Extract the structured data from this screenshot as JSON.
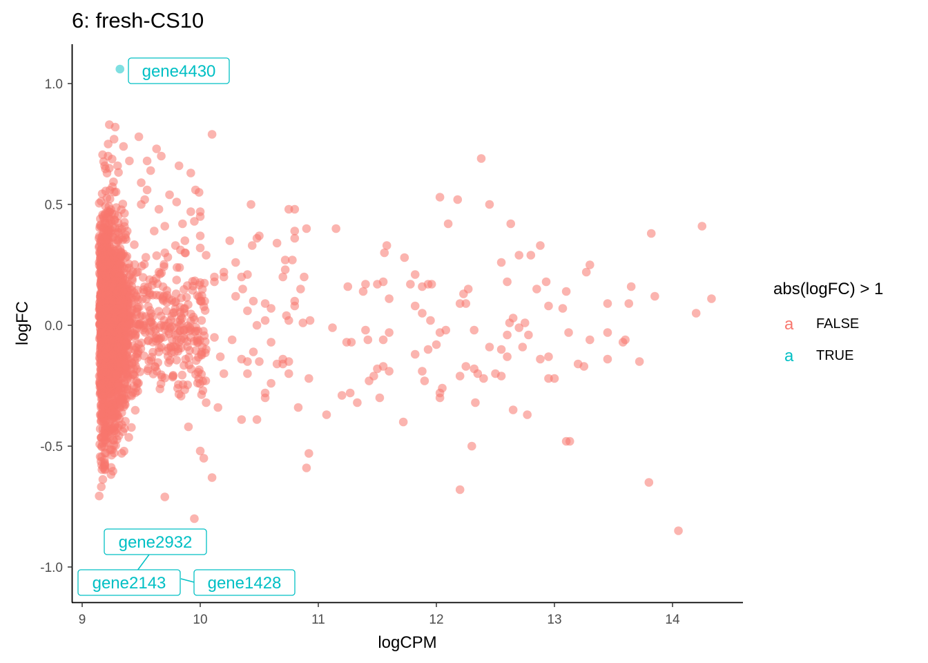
{
  "chart_data": {
    "type": "scatter",
    "title": "6: fresh-CS10",
    "xlabel": "logCPM",
    "ylabel": "logFC",
    "xlim": [
      8.92,
      14.6
    ],
    "ylim": [
      -1.15,
      1.16
    ],
    "x_ticks": [
      9,
      10,
      11,
      12,
      13,
      14
    ],
    "y_ticks": [
      -1.0,
      -0.5,
      0.0,
      0.5,
      1.0
    ],
    "x_tick_labels": [
      "9",
      "10",
      "11",
      "12",
      "13",
      "14"
    ],
    "y_tick_labels": [
      "-1.0",
      "-0.5",
      "0.0",
      "0.5",
      "1.0"
    ],
    "grid": false,
    "legend": {
      "title": "abs(logFC) > 1",
      "position": "right",
      "entries": [
        {
          "label": "FALSE",
          "key_glyph": "a",
          "color": "#F8766D"
        },
        {
          "label": "TRUE",
          "key_glyph": "a",
          "color": "#00BFC4"
        }
      ]
    },
    "colors": {
      "FALSE": "#F8766D",
      "TRUE": "#00BFC4"
    },
    "annotations": [
      {
        "gene": "gene4430",
        "x": 9.32,
        "y": 1.06
      },
      {
        "gene": "gene2932",
        "x": 9.42,
        "y": -0.9
      },
      {
        "gene": "gene2143",
        "x": 9.38,
        "y": -1.07
      },
      {
        "gene": "gene1428",
        "x": 9.9,
        "y": -1.07
      }
    ],
    "series": [
      {
        "name": "TRUE",
        "points": [
          [
            9.32,
            1.06
          ]
        ]
      },
      {
        "name": "FALSE",
        "points": [
          [
            9.23,
            0.83
          ],
          [
            9.28,
            0.82
          ],
          [
            9.22,
            0.75
          ],
          [
            9.27,
            0.77
          ],
          [
            9.35,
            0.74
          ],
          [
            9.48,
            0.78
          ],
          [
            9.63,
            0.73
          ],
          [
            9.67,
            0.7
          ],
          [
            9.55,
            0.68
          ],
          [
            9.22,
            0.7
          ],
          [
            9.23,
            0.65
          ],
          [
            9.3,
            0.66
          ],
          [
            9.4,
            0.68
          ],
          [
            9.82,
            0.66
          ],
          [
            9.92,
            0.63
          ],
          [
            10.1,
            0.79
          ],
          [
            9.58,
            0.64
          ],
          [
            9.5,
            0.59
          ],
          [
            9.55,
            0.56
          ],
          [
            9.74,
            0.54
          ],
          [
            9.8,
            0.51
          ],
          [
            9.96,
            0.56
          ],
          [
            9.99,
            0.55
          ],
          [
            9.53,
            0.52
          ],
          [
            9.5,
            0.5
          ],
          [
            9.65,
            0.48
          ],
          [
            10.0,
            0.47
          ],
          [
            10.0,
            0.45
          ],
          [
            9.92,
            0.47
          ],
          [
            9.85,
            0.42
          ],
          [
            9.7,
            0.41
          ],
          [
            9.95,
            0.43
          ],
          [
            10.0,
            0.37
          ],
          [
            9.61,
            0.39
          ],
          [
            9.87,
            0.35
          ],
          [
            9.79,
            0.33
          ],
          [
            9.87,
            0.3
          ],
          [
            10.0,
            0.32
          ],
          [
            10.05,
            0.29
          ],
          [
            10.12,
            0.2
          ],
          [
            10.2,
            0.22
          ],
          [
            10.12,
            0.18
          ],
          [
            10.2,
            0.2
          ],
          [
            10.3,
            0.26
          ],
          [
            10.35,
            0.2
          ],
          [
            10.4,
            0.21
          ],
          [
            10.44,
            0.33
          ],
          [
            10.48,
            0.36
          ],
          [
            10.25,
            0.35
          ],
          [
            10.5,
            0.37
          ],
          [
            10.65,
            0.34
          ],
          [
            10.36,
            0.15
          ],
          [
            10.3,
            0.12
          ],
          [
            10.45,
            0.1
          ],
          [
            10.55,
            0.09
          ],
          [
            10.4,
            0.06
          ],
          [
            10.48,
            0.0
          ],
          [
            10.55,
            0.02
          ],
          [
            10.6,
            0.07
          ],
          [
            10.73,
            0.04
          ],
          [
            10.75,
            0.02
          ],
          [
            10.43,
            0.5
          ],
          [
            10.75,
            0.48
          ],
          [
            10.8,
            0.48
          ],
          [
            10.9,
            0.4
          ],
          [
            10.8,
            0.39
          ],
          [
            10.8,
            0.36
          ],
          [
            10.72,
            0.27
          ],
          [
            10.78,
            0.27
          ],
          [
            10.72,
            0.23
          ],
          [
            10.7,
            0.2
          ],
          [
            10.85,
            0.15
          ],
          [
            10.88,
            0.2
          ],
          [
            10.8,
            0.1
          ],
          [
            10.8,
            0.08
          ],
          [
            10.87,
            0.01
          ],
          [
            10.93,
            0.02
          ],
          [
            10.12,
            -0.05
          ],
          [
            10.27,
            -0.06
          ],
          [
            10.17,
            -0.13
          ],
          [
            10.05,
            -0.1
          ],
          [
            10.2,
            -0.2
          ],
          [
            10.35,
            -0.14
          ],
          [
            10.4,
            -0.15
          ],
          [
            10.4,
            -0.2
          ],
          [
            10.45,
            -0.11
          ],
          [
            10.5,
            -0.15
          ],
          [
            10.6,
            -0.07
          ],
          [
            10.7,
            -0.14
          ],
          [
            10.75,
            -0.15
          ],
          [
            10.6,
            -0.24
          ],
          [
            10.55,
            -0.3
          ],
          [
            10.55,
            -0.28
          ],
          [
            10.65,
            -0.16
          ],
          [
            10.75,
            -0.2
          ],
          [
            10.83,
            -0.34
          ],
          [
            10.92,
            -0.22
          ],
          [
            10.35,
            -0.39
          ],
          [
            10.48,
            -0.39
          ],
          [
            10.15,
            -0.34
          ],
          [
            10.05,
            -0.32
          ],
          [
            10.1,
            -0.63
          ],
          [
            10.0,
            -0.52
          ],
          [
            10.03,
            -0.55
          ],
          [
            9.9,
            -0.42
          ],
          [
            9.95,
            -0.8
          ],
          [
            9.7,
            -0.71
          ],
          [
            10.7,
            -0.16
          ],
          [
            10.9,
            -0.59
          ],
          [
            10.92,
            -0.53
          ],
          [
            11.15,
            0.4
          ],
          [
            11.25,
            0.16
          ],
          [
            11.38,
            0.14
          ],
          [
            11.4,
            0.17
          ],
          [
            11.5,
            0.17
          ],
          [
            11.56,
            0.3
          ],
          [
            11.58,
            0.33
          ],
          [
            11.55,
            0.18
          ],
          [
            11.6,
            0.11
          ],
          [
            11.73,
            0.28
          ],
          [
            11.78,
            0.17
          ],
          [
            11.82,
            0.21
          ],
          [
            11.88,
            0.16
          ],
          [
            11.93,
            0.17
          ],
          [
            11.96,
            0.17
          ],
          [
            11.82,
            0.08
          ],
          [
            11.88,
            0.05
          ],
          [
            11.95,
            0.02
          ],
          [
            12.03,
            0.53
          ],
          [
            12.1,
            0.42
          ],
          [
            12.18,
            0.52
          ],
          [
            12.23,
            0.13
          ],
          [
            12.27,
            0.15
          ],
          [
            12.2,
            0.09
          ],
          [
            12.25,
            0.09
          ],
          [
            12.38,
            0.69
          ],
          [
            12.45,
            0.5
          ],
          [
            12.55,
            0.26
          ],
          [
            12.6,
            0.18
          ],
          [
            12.63,
            0.42
          ],
          [
            12.7,
            0.29
          ],
          [
            12.8,
            0.29
          ],
          [
            12.88,
            0.33
          ],
          [
            12.93,
            0.18
          ],
          [
            12.85,
            0.15
          ],
          [
            12.95,
            0.08
          ],
          [
            13.1,
            0.14
          ],
          [
            13.27,
            0.22
          ],
          [
            13.3,
            0.25
          ],
          [
            13.45,
            0.09
          ],
          [
            13.63,
            0.09
          ],
          [
            13.65,
            0.16
          ],
          [
            13.82,
            0.38
          ],
          [
            13.85,
            0.12
          ],
          [
            14.2,
            0.05
          ],
          [
            14.25,
            0.41
          ],
          [
            14.33,
            0.11
          ],
          [
            11.12,
            -0.01
          ],
          [
            11.24,
            -0.07
          ],
          [
            11.28,
            -0.07
          ],
          [
            11.4,
            -0.02
          ],
          [
            11.42,
            -0.06
          ],
          [
            11.55,
            -0.06
          ],
          [
            11.6,
            -0.03
          ],
          [
            11.5,
            -0.18
          ],
          [
            11.47,
            -0.21
          ],
          [
            11.43,
            -0.23
          ],
          [
            11.55,
            -0.17
          ],
          [
            11.6,
            -0.19
          ],
          [
            11.82,
            -0.12
          ],
          [
            11.93,
            -0.1
          ],
          [
            12.0,
            -0.08
          ],
          [
            11.88,
            -0.19
          ],
          [
            11.9,
            -0.23
          ],
          [
            12.03,
            -0.03
          ],
          [
            12.08,
            -0.02
          ],
          [
            12.03,
            -0.3
          ],
          [
            12.03,
            -0.28
          ],
          [
            12.05,
            -0.26
          ],
          [
            12.2,
            -0.21
          ],
          [
            12.25,
            -0.17
          ],
          [
            12.32,
            -0.18
          ],
          [
            12.35,
            -0.2
          ],
          [
            12.4,
            -0.22
          ],
          [
            12.45,
            -0.09
          ],
          [
            12.5,
            -0.2
          ],
          [
            12.55,
            -0.21
          ],
          [
            12.55,
            -0.1
          ],
          [
            12.6,
            -0.04
          ],
          [
            12.6,
            -0.13
          ],
          [
            12.65,
            0.03
          ],
          [
            12.62,
            0.01
          ],
          [
            12.7,
            -0.01
          ],
          [
            12.75,
            0.01
          ],
          [
            12.73,
            -0.09
          ],
          [
            12.78,
            -0.04
          ],
          [
            12.32,
            -0.02
          ],
          [
            12.33,
            -0.32
          ],
          [
            12.3,
            -0.5
          ],
          [
            12.2,
            -0.68
          ],
          [
            12.65,
            -0.35
          ],
          [
            12.77,
            -0.37
          ],
          [
            12.88,
            -0.14
          ],
          [
            12.95,
            -0.22
          ],
          [
            13.0,
            -0.22
          ],
          [
            12.95,
            -0.13
          ],
          [
            13.07,
            0.07
          ],
          [
            13.12,
            -0.03
          ],
          [
            13.1,
            -0.48
          ],
          [
            13.13,
            -0.48
          ],
          [
            13.2,
            -0.16
          ],
          [
            13.25,
            -0.17
          ],
          [
            13.3,
            -0.06
          ],
          [
            13.45,
            -0.03
          ],
          [
            13.45,
            -0.14
          ],
          [
            13.58,
            -0.07
          ],
          [
            13.6,
            -0.06
          ],
          [
            13.72,
            -0.15
          ],
          [
            13.8,
            -0.65
          ],
          [
            14.05,
            -0.85
          ],
          [
            11.72,
            -0.4
          ],
          [
            11.33,
            -0.32
          ],
          [
            11.07,
            -0.37
          ],
          [
            11.27,
            -0.28
          ],
          [
            11.2,
            -0.29
          ],
          [
            11.52,
            -0.3
          ]
        ]
      }
    ]
  }
}
